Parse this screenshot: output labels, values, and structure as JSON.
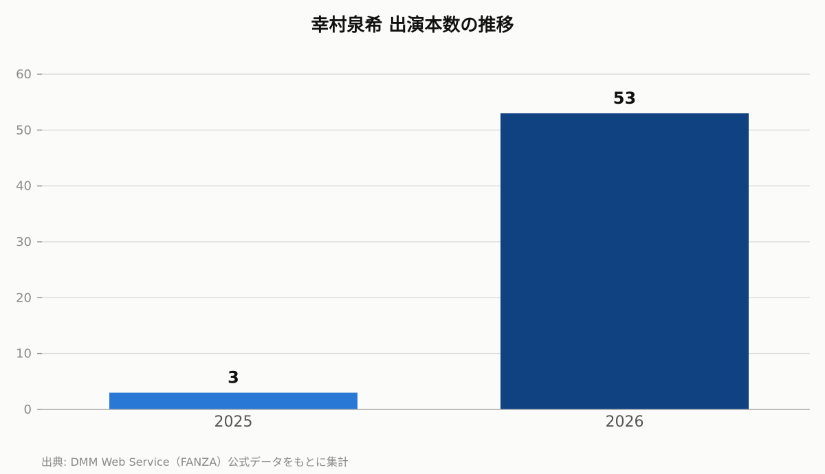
{
  "chart_data": {
    "type": "bar",
    "title": "幸村泉希 出演本数の推移",
    "categories": [
      "2025",
      "2026"
    ],
    "values": [
      3,
      53
    ],
    "colors": [
      "#2a78d6",
      "#104282"
    ],
    "ylim": [
      0,
      60
    ],
    "yticks": [
      0,
      10,
      20,
      30,
      40,
      50,
      60
    ],
    "grid": true,
    "xlabel": "",
    "ylabel": ""
  },
  "source": "出典: DMM Web Service（FANZA）公式データをもとに集計"
}
